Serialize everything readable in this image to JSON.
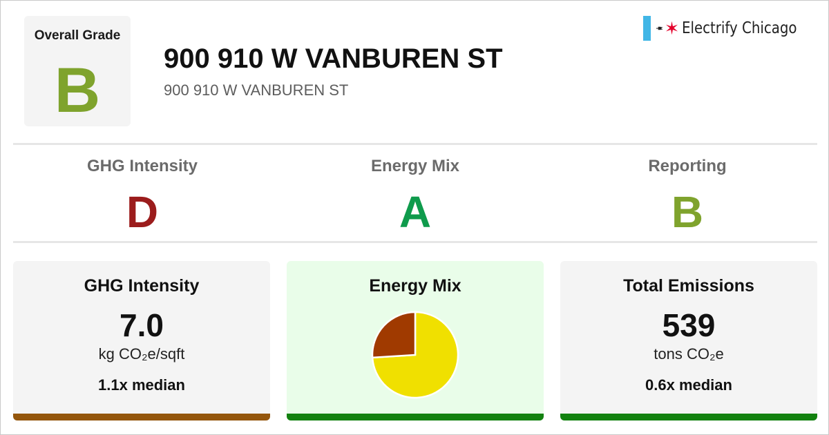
{
  "overall": {
    "label": "Overall Grade",
    "grade": "B",
    "grade_color": "#7fa32d"
  },
  "building": {
    "name": "900 910 W VANBUREN ST",
    "address": "900 910 W VANBUREN ST"
  },
  "logo": {
    "text": "Electrify Chicago",
    "flag_color": "#41b6e6",
    "star_color": "#e4002b",
    "icons": [
      "flag-stripe-icon",
      "plug-icon",
      "chicago-star-icon"
    ]
  },
  "subgrades": [
    {
      "label": "GHG Intensity",
      "grade": "D",
      "color": "#9b1c1c"
    },
    {
      "label": "Energy Mix",
      "grade": "A",
      "color": "#0f9b4c"
    },
    {
      "label": "Reporting",
      "grade": "B",
      "color": "#7fa32d"
    }
  ],
  "cards": {
    "ghg": {
      "title": "GHG Intensity",
      "value": "7.0",
      "unit": "kg CO₂e/sqft",
      "median": "1.1x median",
      "bar_color": "#94560c"
    },
    "mix": {
      "title": "Energy Mix",
      "bar_color": "#12810f"
    },
    "emissions": {
      "title": "Total Emissions",
      "value": "539",
      "unit": "tons CO₂e",
      "median": "0.6x median",
      "bar_color": "#12810f"
    }
  },
  "chart_data": {
    "type": "pie",
    "slices": [
      {
        "value": 74,
        "color": "#f0e000"
      },
      {
        "value": 26,
        "color": "#a03a00"
      }
    ]
  }
}
